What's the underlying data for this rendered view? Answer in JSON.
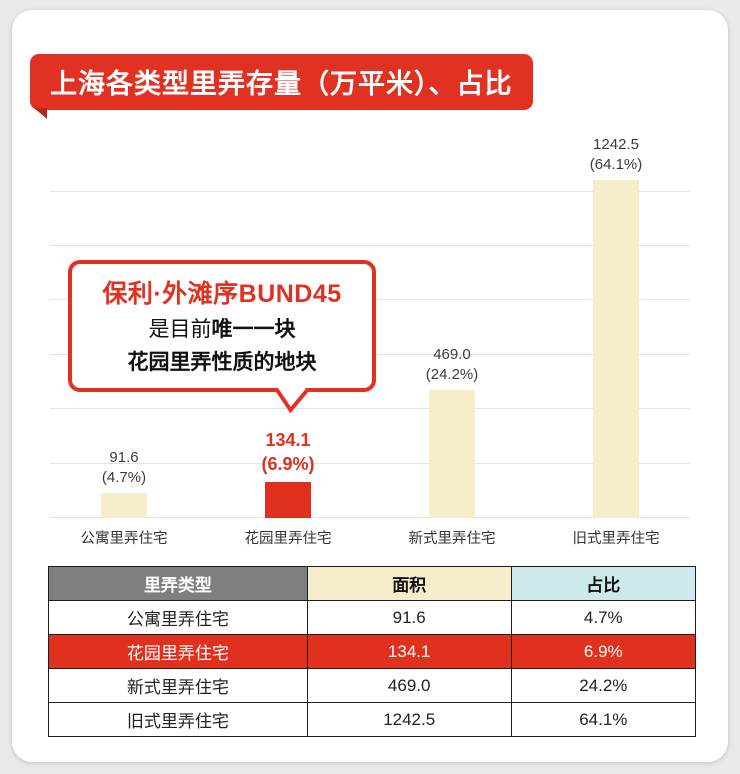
{
  "page": {
    "title": "上海各类型里弄存量（万平米）、占比"
  },
  "chart_data": {
    "type": "bar",
    "title": "上海各类型里弄存量（万平米）、占比",
    "xlabel": "",
    "ylabel": "",
    "ylim": [
      0,
      1400
    ],
    "grid": true,
    "legend": "none",
    "categories": [
      "公寓里弄住宅",
      "花园里弄住宅",
      "新式里弄住宅",
      "旧式里弄住宅"
    ],
    "values": [
      91.6,
      134.1,
      469.0,
      1242.5
    ],
    "percentages": [
      4.7,
      6.9,
      24.2,
      64.1
    ],
    "value_labels": [
      "91.6",
      "134.1",
      "469.0",
      "1242.5"
    ],
    "pct_labels": [
      "(4.7%)",
      "(6.9%)",
      "(24.2%)",
      "(64.1%)"
    ],
    "highlight_index": 1,
    "colors": {
      "bar": "#f8edca",
      "highlight": "#e0301e"
    }
  },
  "callout": {
    "heading": "保利·外滩序BUND45",
    "line1_prefix": "是目前",
    "line1_bold": "唯一一块",
    "line2": "花园里弄性质的地块"
  },
  "table": {
    "headers": [
      "里弄类型",
      "面积",
      "占比"
    ],
    "rows": [
      {
        "type": "公寓里弄住宅",
        "area": "91.6",
        "share": "4.7%",
        "highlight": false
      },
      {
        "type": "花园里弄住宅",
        "area": "134.1",
        "share": "6.9%",
        "highlight": true
      },
      {
        "type": "新式里弄住宅",
        "area": "469.0",
        "share": "24.2%",
        "highlight": false
      },
      {
        "type": "旧式里弄住宅",
        "area": "1242.5",
        "share": "64.1%",
        "highlight": false
      }
    ]
  }
}
